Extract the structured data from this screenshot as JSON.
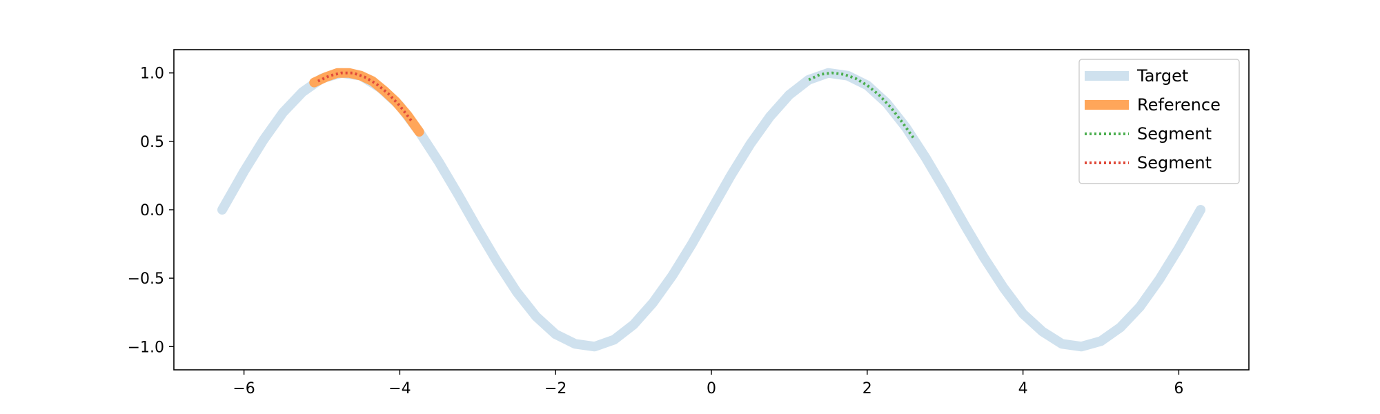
{
  "chart_data": {
    "type": "line",
    "title": "",
    "xlabel": "",
    "ylabel": "",
    "xlim": [
      -6.9,
      6.9
    ],
    "ylim": [
      -1.17,
      1.17
    ],
    "xticks": [
      -6,
      -4,
      -2,
      0,
      2,
      4,
      6
    ],
    "yticks": [
      -1.0,
      -0.5,
      0.0,
      0.5,
      1.0
    ],
    "xtick_labels": [
      "−6",
      "−4",
      "−2",
      "0",
      "2",
      "4",
      "6"
    ],
    "ytick_labels": [
      "−1.0",
      "−0.5",
      "0.0",
      "0.5",
      "1.0"
    ],
    "grid": false,
    "legend_position": "top-right",
    "series": [
      {
        "name": "Target",
        "color": "#cfe1ee",
        "style": "solid-thick",
        "x": [
          -6.28,
          -6.0,
          -5.75,
          -5.5,
          -5.25,
          -5.0,
          -4.75,
          -4.5,
          -4.25,
          -4.0,
          -3.75,
          -3.5,
          -3.25,
          -3.0,
          -2.75,
          -2.5,
          -2.25,
          -2.0,
          -1.75,
          -1.5,
          -1.25,
          -1.0,
          -0.75,
          -0.5,
          -0.25,
          0.0,
          0.25,
          0.5,
          0.75,
          1.0,
          1.25,
          1.5,
          1.75,
          2.0,
          2.25,
          2.5,
          2.75,
          3.0,
          3.25,
          3.5,
          3.75,
          4.0,
          4.25,
          4.5,
          4.75,
          5.0,
          5.25,
          5.5,
          5.75,
          6.0,
          6.28
        ],
        "y": [
          0.0,
          0.28,
          0.51,
          0.71,
          0.86,
          0.96,
          1.0,
          0.98,
          0.89,
          0.76,
          0.57,
          0.35,
          0.11,
          -0.14,
          -0.38,
          -0.6,
          -0.78,
          -0.91,
          -0.98,
          -1.0,
          -0.95,
          -0.84,
          -0.68,
          -0.48,
          -0.25,
          0.0,
          0.25,
          0.48,
          0.68,
          0.84,
          0.95,
          1.0,
          0.98,
          0.91,
          0.78,
          0.6,
          0.38,
          0.14,
          -0.11,
          -0.35,
          -0.57,
          -0.76,
          -0.89,
          -0.98,
          -1.0,
          -0.96,
          -0.86,
          -0.71,
          -0.51,
          -0.28,
          0.0
        ]
      },
      {
        "name": "Reference",
        "color": "#ffa65a",
        "style": "solid-thick",
        "x": [
          -5.1,
          -4.95,
          -4.8,
          -4.65,
          -4.5,
          -4.35,
          -4.2,
          -4.05,
          -3.9,
          -3.75
        ],
        "y": [
          0.93,
          0.97,
          1.0,
          1.0,
          0.98,
          0.94,
          0.87,
          0.79,
          0.69,
          0.57
        ]
      },
      {
        "name": "Segment",
        "color": "#4caf50",
        "style": "dotted",
        "x": [
          1.25,
          1.4,
          1.55,
          1.7,
          1.85,
          2.0,
          2.15,
          2.3,
          2.45,
          2.6
        ],
        "y": [
          0.95,
          0.99,
          1.0,
          0.99,
          0.96,
          0.91,
          0.84,
          0.75,
          0.64,
          0.52
        ]
      },
      {
        "name": "Segment",
        "color": "#e04a3a",
        "style": "dotted",
        "x": [
          -5.05,
          -4.9,
          -4.75,
          -4.6,
          -4.45,
          -4.3,
          -4.15,
          -4.0,
          -3.85
        ],
        "y": [
          0.94,
          0.98,
          1.0,
          1.0,
          0.97,
          0.92,
          0.85,
          0.76,
          0.65
        ]
      }
    ]
  }
}
